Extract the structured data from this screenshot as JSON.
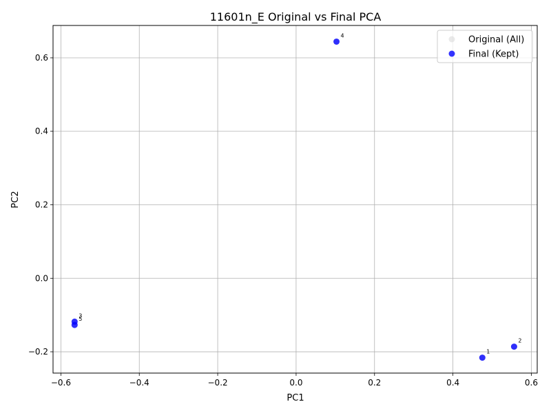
{
  "chart_data": {
    "type": "scatter",
    "title": "11601n_E Original vs Final PCA",
    "xlabel": "PC1",
    "ylabel": "PC2",
    "xlim": [
      -0.62,
      0.615
    ],
    "ylim": [
      -0.258,
      0.688
    ],
    "xticks": [
      -0.6,
      -0.4,
      -0.2,
      0.0,
      0.2,
      0.4,
      0.6
    ],
    "xtick_labels": [
      "−0.6",
      "−0.4",
      "−0.2",
      "0.0",
      "0.2",
      "0.4",
      "0.6"
    ],
    "yticks": [
      -0.2,
      0.0,
      0.2,
      0.4,
      0.6
    ],
    "ytick_labels": [
      "−0.2",
      "0.0",
      "0.2",
      "0.4",
      "0.6"
    ],
    "grid": true,
    "legend_position": "upper right",
    "series": [
      {
        "name": "Original (All)",
        "color": "#d3d3d3",
        "points": [
          {
            "x": 0.475,
            "y": -0.216,
            "label": "1"
          },
          {
            "x": 0.556,
            "y": -0.186,
            "label": "2"
          },
          {
            "x": -0.565,
            "y": -0.118,
            "label": "3"
          },
          {
            "x": 0.103,
            "y": 0.644,
            "label": "4"
          },
          {
            "x": -0.565,
            "y": -0.127,
            "label": "5"
          }
        ]
      },
      {
        "name": "Final (Kept)",
        "color": "#0000ff",
        "points": [
          {
            "x": 0.475,
            "y": -0.216,
            "label": "1"
          },
          {
            "x": 0.556,
            "y": -0.186,
            "label": "2"
          },
          {
            "x": -0.565,
            "y": -0.118,
            "label": "3"
          },
          {
            "x": 0.103,
            "y": 0.644,
            "label": "4"
          },
          {
            "x": -0.565,
            "y": -0.127,
            "label": "5"
          }
        ]
      }
    ]
  }
}
